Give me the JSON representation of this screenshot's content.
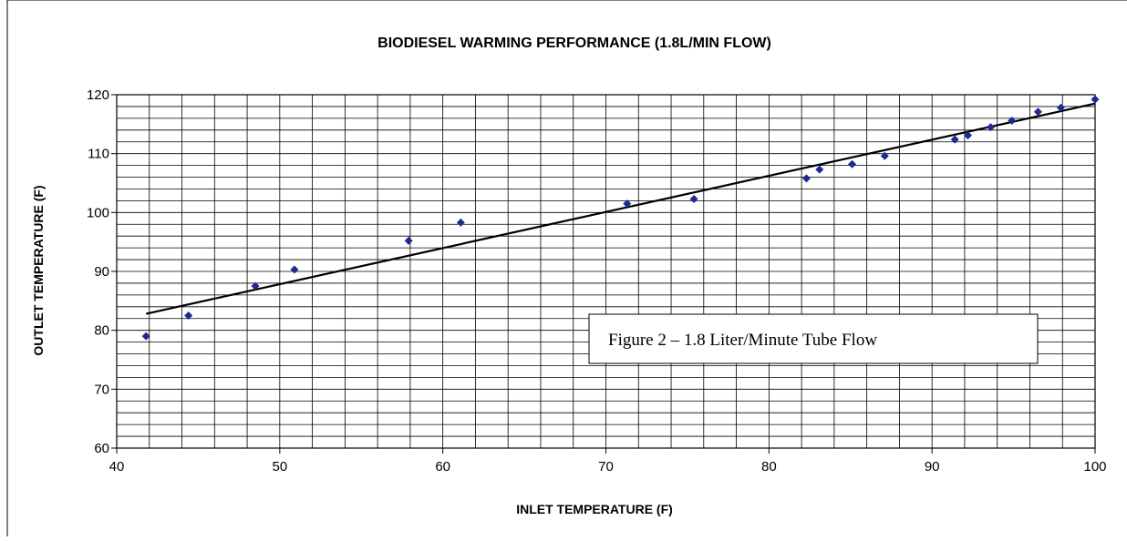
{
  "chart_data": {
    "type": "scatter",
    "title": "BIODIESEL WARMING PERFORMANCE (1.8L/MIN FLOW)",
    "xlabel": "INLET TEMPERATURE (F)",
    "ylabel": "OUTLET TEMPERATURE (F)",
    "xlim": [
      40,
      100
    ],
    "ylim": [
      60,
      120
    ],
    "x_ticks": [
      40,
      50,
      60,
      70,
      80,
      90,
      100
    ],
    "y_ticks": [
      60,
      70,
      80,
      90,
      100,
      110,
      120
    ],
    "grid": true,
    "marker_color": "#1F2A8C",
    "trendline_color": "#000000",
    "annotation": "Figure 2 – 1.8 Liter/Minute Tube Flow",
    "series": [
      {
        "points": [
          [
            41.8,
            79.0
          ],
          [
            44.4,
            82.5
          ],
          [
            48.5,
            87.5
          ],
          [
            50.9,
            90.3
          ],
          [
            57.9,
            95.2
          ],
          [
            61.1,
            98.3
          ],
          [
            71.3,
            101.5
          ],
          [
            75.4,
            102.3
          ],
          [
            82.3,
            105.8
          ],
          [
            83.1,
            107.3
          ],
          [
            85.1,
            108.2
          ],
          [
            87.1,
            109.6
          ],
          [
            91.4,
            112.4
          ],
          [
            92.2,
            113.1
          ],
          [
            93.6,
            114.5
          ],
          [
            94.9,
            115.6
          ],
          [
            96.5,
            117.1
          ],
          [
            97.9,
            117.8
          ],
          [
            100.0,
            119.2
          ]
        ]
      }
    ],
    "trendline": {
      "x": [
        41.8,
        100
      ],
      "y": [
        82.8,
        118.5
      ]
    }
  }
}
